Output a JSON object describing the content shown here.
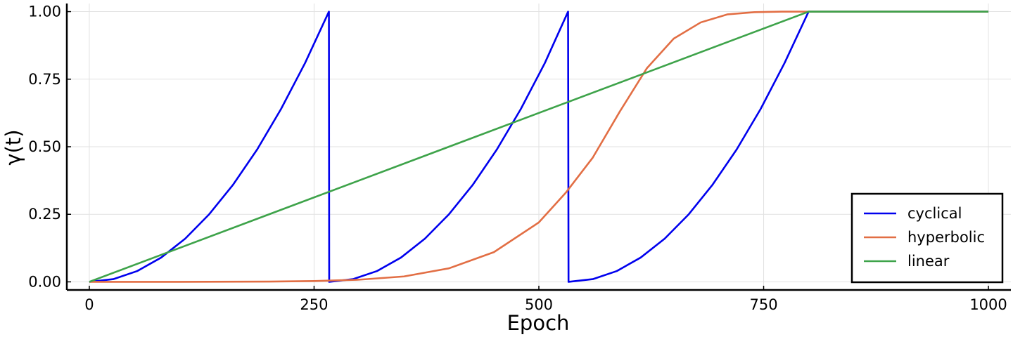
{
  "chart_data": {
    "type": "line",
    "xlabel": "Epoch",
    "ylabel": "γ(t)",
    "xlim": [
      -25,
      1025
    ],
    "ylim": [
      -0.03,
      1.03
    ],
    "xticks": [
      0,
      250,
      500,
      750,
      1000
    ],
    "xtick_labels": [
      "0",
      "250",
      "500",
      "750",
      "1000"
    ],
    "yticks": [
      0,
      0.25,
      0.5,
      0.75,
      1.0
    ],
    "ytick_labels": [
      "0.00",
      "0.25",
      "0.50",
      "0.75",
      "1.00"
    ],
    "grid": true,
    "legend_position": "bottom-right",
    "series": [
      {
        "name": "cyclical",
        "color": "#0000ee",
        "x": [
          0,
          26.7,
          53.3,
          80,
          106.7,
          133.3,
          160,
          186.7,
          213.3,
          240,
          266.5,
          266.8,
          293.3,
          320,
          346.7,
          373.3,
          400,
          426.7,
          453.3,
          480,
          506.7,
          532.5,
          533,
          560,
          586.7,
          613.3,
          640,
          666.7,
          693.3,
          720,
          746.7,
          773.3,
          800,
          1000
        ],
        "y": [
          0,
          0.01,
          0.04,
          0.09,
          0.16,
          0.25,
          0.36,
          0.49,
          0.64,
          0.81,
          1.0,
          0.0,
          0.01,
          0.04,
          0.09,
          0.16,
          0.25,
          0.36,
          0.49,
          0.64,
          0.81,
          1.0,
          0.0,
          0.01,
          0.04,
          0.09,
          0.16,
          0.25,
          0.36,
          0.49,
          0.64,
          0.81,
          1.0,
          1.0
        ]
      },
      {
        "name": "hyperbolic",
        "color": "#e26e44",
        "x": [
          0,
          100,
          200,
          250,
          300,
          350,
          400,
          450,
          500,
          530,
          560,
          590,
          620,
          650,
          680,
          710,
          740,
          770,
          800,
          1000
        ],
        "y": [
          0,
          0.0,
          0.001,
          0.003,
          0.008,
          0.02,
          0.05,
          0.11,
          0.22,
          0.33,
          0.46,
          0.63,
          0.79,
          0.9,
          0.96,
          0.99,
          0.998,
          1.0,
          1.0,
          1.0
        ]
      },
      {
        "name": "linear",
        "color": "#3ea34a",
        "x": [
          0,
          800,
          1000
        ],
        "y": [
          0,
          1.0,
          1.0
        ]
      }
    ]
  }
}
